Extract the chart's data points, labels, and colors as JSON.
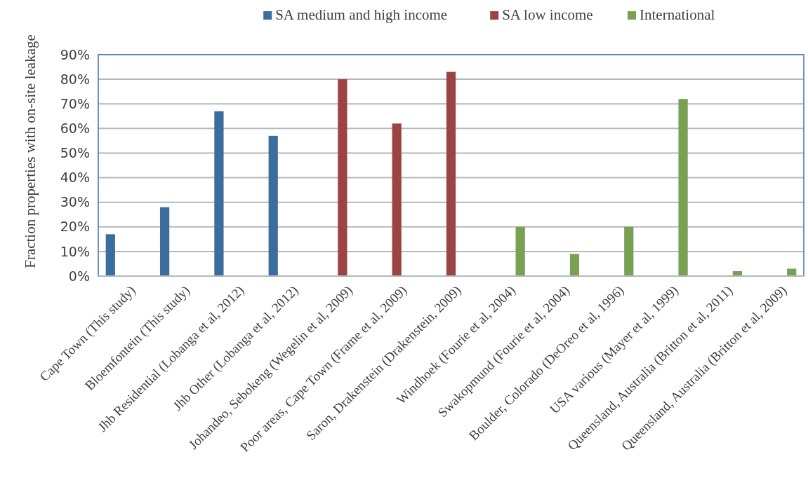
{
  "chart_data": {
    "type": "bar",
    "ylabel": "Fraction properties with on-site leakage",
    "categories": [
      "Cape Town (This study)",
      "Bloemfontein (This study)",
      "Jhb Residential (Lobanga et al, 2012)",
      "Jhb Other (Lobanga et al, 2012)",
      "Johandeo, Sebokeng (Wegelin et al, 2009)",
      "Poor areas, Cape Town (Frame et al, 2009)",
      "Saron, Drakenstein (Drakenstein, 2009)",
      "Windhoek (Fourie et al, 2004)",
      "Swakopmund (Fourie et al, 2004)",
      "Boulder, Colorado (DeOreo et al, 1996)",
      "USA various (Mayer et al, 1999)",
      "Queensland, Australia (Britton et al, 2011)",
      "Queensland, Australia (Britton et al, 2009)"
    ],
    "series": [
      {
        "name": "SA medium and high income",
        "color": "#3c6d9f",
        "values": [
          17,
          28,
          67,
          57,
          null,
          null,
          null,
          null,
          null,
          null,
          null,
          null,
          null
        ]
      },
      {
        "name": "SA low income",
        "color": "#9c4343",
        "values": [
          null,
          null,
          null,
          null,
          80,
          62,
          83,
          null,
          null,
          null,
          null,
          null,
          null
        ]
      },
      {
        "name": "International",
        "color": "#7aa052",
        "values": [
          null,
          null,
          null,
          null,
          null,
          null,
          null,
          20,
          9,
          20,
          72,
          2,
          3
        ]
      }
    ],
    "ylim": [
      0,
      90
    ],
    "yticks": [
      {
        "value": 0,
        "label": "0%"
      },
      {
        "value": 10,
        "label": "10%"
      },
      {
        "value": 20,
        "label": "20%"
      },
      {
        "value": 30,
        "label": "30%"
      },
      {
        "value": 40,
        "label": "40%"
      },
      {
        "value": 50,
        "label": "50%"
      },
      {
        "value": 60,
        "label": "60%"
      },
      {
        "value": 70,
        "label": "70%"
      },
      {
        "value": 80,
        "label": "80%"
      },
      {
        "value": 90,
        "label": "90%"
      }
    ],
    "grid": "y",
    "legend": "top"
  }
}
